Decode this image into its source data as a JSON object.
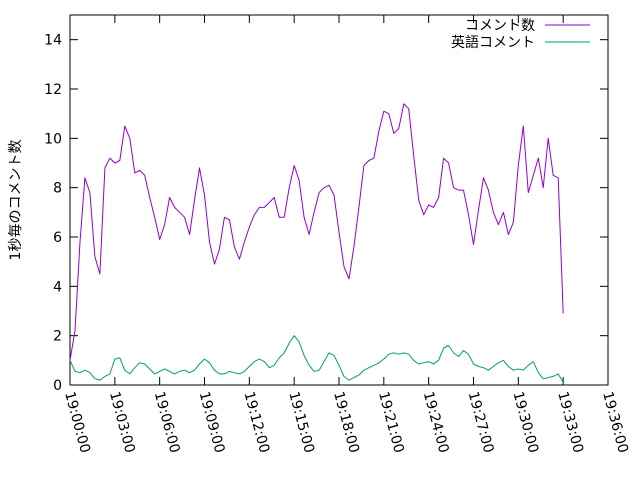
{
  "chart_data": {
    "type": "line",
    "title": "",
    "xlabel": "",
    "ylabel": "1秒毎のコメント数",
    "ylim": [
      0,
      15
    ],
    "xlim": [
      "19:00:00",
      "19:36:00"
    ],
    "yticks": [
      "0",
      "2",
      "4",
      "6",
      "8",
      "10",
      "12",
      "14"
    ],
    "xticks": [
      "19:00:00",
      "19:03:00",
      "19:06:00",
      "19:09:00",
      "19:12:00",
      "19:15:00",
      "19:18:00",
      "19:21:00",
      "19:24:00",
      "19:27:00",
      "19:30:00",
      "19:33:00",
      "19:36:00"
    ],
    "grid": false,
    "legend_position": "top-right",
    "series": [
      {
        "name": "コメント数",
        "color": "#9400d3",
        "points": [
          [
            "19:00:00",
            1.0
          ],
          [
            "19:00:20",
            2.2
          ],
          [
            "19:00:40",
            5.8
          ],
          [
            "19:01:00",
            8.4
          ],
          [
            "19:01:20",
            7.8
          ],
          [
            "19:01:40",
            5.2
          ],
          [
            "19:02:00",
            4.5
          ],
          [
            "19:02:20",
            8.8
          ],
          [
            "19:02:40",
            9.2
          ],
          [
            "19:03:00",
            9.0
          ],
          [
            "19:03:20",
            9.1
          ],
          [
            "19:03:40",
            10.5
          ],
          [
            "19:04:00",
            10.0
          ],
          [
            "19:04:20",
            8.6
          ],
          [
            "19:04:40",
            8.7
          ],
          [
            "19:05:00",
            8.5
          ],
          [
            "19:05:20",
            7.6
          ],
          [
            "19:05:40",
            6.8
          ],
          [
            "19:06:00",
            5.9
          ],
          [
            "19:06:20",
            6.5
          ],
          [
            "19:06:40",
            7.6
          ],
          [
            "19:07:00",
            7.2
          ],
          [
            "19:07:20",
            7.0
          ],
          [
            "19:07:40",
            6.8
          ],
          [
            "19:08:00",
            6.1
          ],
          [
            "19:08:20",
            7.5
          ],
          [
            "19:08:40",
            8.8
          ],
          [
            "19:09:00",
            7.7
          ],
          [
            "19:09:20",
            5.8
          ],
          [
            "19:09:40",
            4.9
          ],
          [
            "19:10:00",
            5.5
          ],
          [
            "19:10:20",
            6.8
          ],
          [
            "19:10:40",
            6.7
          ],
          [
            "19:11:00",
            5.6
          ],
          [
            "19:11:20",
            5.1
          ],
          [
            "19:11:40",
            5.8
          ],
          [
            "19:12:00",
            6.4
          ],
          [
            "19:12:20",
            6.9
          ],
          [
            "19:12:40",
            7.2
          ],
          [
            "19:13:00",
            7.2
          ],
          [
            "19:13:20",
            7.4
          ],
          [
            "19:13:40",
            7.6
          ],
          [
            "19:14:00",
            6.8
          ],
          [
            "19:14:20",
            6.8
          ],
          [
            "19:14:40",
            8.0
          ],
          [
            "19:15:00",
            8.9
          ],
          [
            "19:15:20",
            8.3
          ],
          [
            "19:15:40",
            6.8
          ],
          [
            "19:16:00",
            6.1
          ],
          [
            "19:16:20",
            7.0
          ],
          [
            "19:16:40",
            7.8
          ],
          [
            "19:17:00",
            8.0
          ],
          [
            "19:17:20",
            8.1
          ],
          [
            "19:17:40",
            7.7
          ],
          [
            "19:18:00",
            6.2
          ],
          [
            "19:18:20",
            4.8
          ],
          [
            "19:18:40",
            4.3
          ],
          [
            "19:19:00",
            5.6
          ],
          [
            "19:19:20",
            7.2
          ],
          [
            "19:19:40",
            8.9
          ],
          [
            "19:20:00",
            9.1
          ],
          [
            "19:20:20",
            9.2
          ],
          [
            "19:20:40",
            10.3
          ],
          [
            "19:21:00",
            11.1
          ],
          [
            "19:21:20",
            11.0
          ],
          [
            "19:21:40",
            10.2
          ],
          [
            "19:22:00",
            10.4
          ],
          [
            "19:22:20",
            11.4
          ],
          [
            "19:22:40",
            11.2
          ],
          [
            "19:23:00",
            9.3
          ],
          [
            "19:23:20",
            7.5
          ],
          [
            "19:23:40",
            6.9
          ],
          [
            "19:24:00",
            7.3
          ],
          [
            "19:24:20",
            7.2
          ],
          [
            "19:24:40",
            7.6
          ],
          [
            "19:25:00",
            9.2
          ],
          [
            "19:25:20",
            9.0
          ],
          [
            "19:25:40",
            8.0
          ],
          [
            "19:26:00",
            7.9
          ],
          [
            "19:26:20",
            7.9
          ],
          [
            "19:26:40",
            6.9
          ],
          [
            "19:27:00",
            5.7
          ],
          [
            "19:27:20",
            7.1
          ],
          [
            "19:27:40",
            8.4
          ],
          [
            "19:28:00",
            7.9
          ],
          [
            "19:28:20",
            7.0
          ],
          [
            "19:28:40",
            6.5
          ],
          [
            "19:29:00",
            7.0
          ],
          [
            "19:29:20",
            6.1
          ],
          [
            "19:29:40",
            6.6
          ],
          [
            "19:30:00",
            8.9
          ],
          [
            "19:30:20",
            10.5
          ],
          [
            "19:30:40",
            7.8
          ],
          [
            "19:31:00",
            8.5
          ],
          [
            "19:31:20",
            9.2
          ],
          [
            "19:31:40",
            8.0
          ],
          [
            "19:32:00",
            10.0
          ],
          [
            "19:32:20",
            8.5
          ],
          [
            "19:32:40",
            8.4
          ],
          [
            "19:33:00",
            2.9
          ]
        ]
      },
      {
        "name": "英語コメント",
        "color": "#009e73",
        "points": [
          [
            "19:00:00",
            1.0
          ],
          [
            "19:00:20",
            0.55
          ],
          [
            "19:00:40",
            0.5
          ],
          [
            "19:01:00",
            0.6
          ],
          [
            "19:01:20",
            0.5
          ],
          [
            "19:01:40",
            0.25
          ],
          [
            "19:02:00",
            0.2
          ],
          [
            "19:02:20",
            0.35
          ],
          [
            "19:02:40",
            0.45
          ],
          [
            "19:03:00",
            1.05
          ],
          [
            "19:03:20",
            1.1
          ],
          [
            "19:03:40",
            0.6
          ],
          [
            "19:04:00",
            0.45
          ],
          [
            "19:04:20",
            0.7
          ],
          [
            "19:04:40",
            0.9
          ],
          [
            "19:05:00",
            0.85
          ],
          [
            "19:05:20",
            0.65
          ],
          [
            "19:05:40",
            0.45
          ],
          [
            "19:06:00",
            0.55
          ],
          [
            "19:06:20",
            0.65
          ],
          [
            "19:06:40",
            0.55
          ],
          [
            "19:07:00",
            0.45
          ],
          [
            "19:07:20",
            0.55
          ],
          [
            "19:07:40",
            0.6
          ],
          [
            "19:08:00",
            0.5
          ],
          [
            "19:08:20",
            0.6
          ],
          [
            "19:08:40",
            0.85
          ],
          [
            "19:09:00",
            1.05
          ],
          [
            "19:09:20",
            0.9
          ],
          [
            "19:09:40",
            0.6
          ],
          [
            "19:10:00",
            0.45
          ],
          [
            "19:10:20",
            0.45
          ],
          [
            "19:10:40",
            0.55
          ],
          [
            "19:11:00",
            0.5
          ],
          [
            "19:11:20",
            0.45
          ],
          [
            "19:11:40",
            0.55
          ],
          [
            "19:12:00",
            0.75
          ],
          [
            "19:12:20",
            0.95
          ],
          [
            "19:12:40",
            1.05
          ],
          [
            "19:13:00",
            0.95
          ],
          [
            "19:13:20",
            0.7
          ],
          [
            "19:13:40",
            0.8
          ],
          [
            "19:14:00",
            1.1
          ],
          [
            "19:14:20",
            1.3
          ],
          [
            "19:14:40",
            1.7
          ],
          [
            "19:15:00",
            2.0
          ],
          [
            "19:15:20",
            1.75
          ],
          [
            "19:15:40",
            1.2
          ],
          [
            "19:16:00",
            0.8
          ],
          [
            "19:16:20",
            0.55
          ],
          [
            "19:16:40",
            0.6
          ],
          [
            "19:17:00",
            0.95
          ],
          [
            "19:17:20",
            1.3
          ],
          [
            "19:17:40",
            1.2
          ],
          [
            "19:18:00",
            0.8
          ],
          [
            "19:18:20",
            0.35
          ],
          [
            "19:18:40",
            0.2
          ],
          [
            "19:19:00",
            0.3
          ],
          [
            "19:19:20",
            0.4
          ],
          [
            "19:19:40",
            0.6
          ],
          [
            "19:20:00",
            0.7
          ],
          [
            "19:20:20",
            0.8
          ],
          [
            "19:20:40",
            0.9
          ],
          [
            "19:21:00",
            1.05
          ],
          [
            "19:21:20",
            1.25
          ],
          [
            "19:21:40",
            1.3
          ],
          [
            "19:22:00",
            1.25
          ],
          [
            "19:22:20",
            1.3
          ],
          [
            "19:22:40",
            1.25
          ],
          [
            "19:23:00",
            1.0
          ],
          [
            "19:23:20",
            0.85
          ],
          [
            "19:23:40",
            0.9
          ],
          [
            "19:24:00",
            0.95
          ],
          [
            "19:24:20",
            0.85
          ],
          [
            "19:24:40",
            1.0
          ],
          [
            "19:25:00",
            1.5
          ],
          [
            "19:25:20",
            1.6
          ],
          [
            "19:25:40",
            1.3
          ],
          [
            "19:26:00",
            1.15
          ],
          [
            "19:26:20",
            1.4
          ],
          [
            "19:26:40",
            1.25
          ],
          [
            "19:27:00",
            0.85
          ],
          [
            "19:27:20",
            0.75
          ],
          [
            "19:27:40",
            0.7
          ],
          [
            "19:28:00",
            0.6
          ],
          [
            "19:28:20",
            0.75
          ],
          [
            "19:28:40",
            0.9
          ],
          [
            "19:29:00",
            1.0
          ],
          [
            "19:29:20",
            0.75
          ],
          [
            "19:29:40",
            0.6
          ],
          [
            "19:30:00",
            0.65
          ],
          [
            "19:30:20",
            0.6
          ],
          [
            "19:30:40",
            0.8
          ],
          [
            "19:31:00",
            0.95
          ],
          [
            "19:31:20",
            0.5
          ],
          [
            "19:31:40",
            0.25
          ],
          [
            "19:32:00",
            0.3
          ],
          [
            "19:32:20",
            0.35
          ],
          [
            "19:32:40",
            0.45
          ],
          [
            "19:33:00",
            0.1
          ]
        ]
      }
    ]
  }
}
